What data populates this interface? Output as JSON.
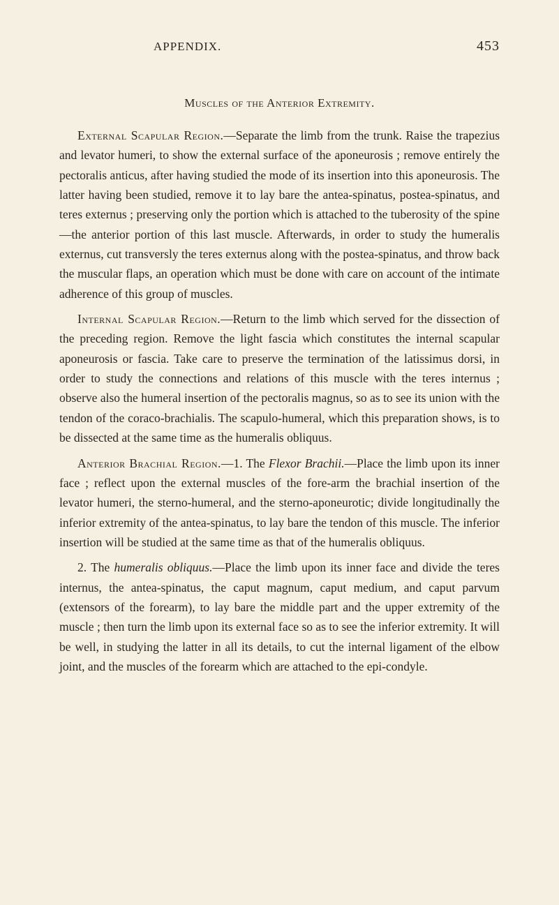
{
  "header": {
    "title": "APPENDIX.",
    "page_number": "453"
  },
  "section_title": "Muscles of the Anterior Extremity.",
  "paragraphs": {
    "p1": {
      "lead": "External Scapular Region.",
      "body": "—Separate the limb from the trunk. Raise the trapezius and levator humeri, to show the external surface of the aponeurosis ; remove entirely the pectoralis anticus, after having studied the mode of its insertion into this aponeurosis. The latter having been studied, remove it to lay bare the antea-spinatus, postea-spinatus, and teres externus ; preserving only the portion which is attached to the tuberosity of the spine—the anterior portion of this last muscle. Afterwards, in order to study the humeralis externus, cut transversly the teres externus along with the postea-spinatus, and throw back the muscular flaps, an operation which must be done with care on account of the intimate adherence of this group of muscles."
    },
    "p2": {
      "lead": "Internal Scapular Region.",
      "body": "—Return to the limb which served for the dissection of the preceding region. Remove the light fascia which constitutes the internal scapular aponeurosis or fascia. Take care to preserve the termination of the latissimus dorsi, in order to study the connections and relations of this muscle with the teres internus ; observe also the humeral insertion of the pectoralis magnus, so as to see its union with the tendon of the coraco-brachialis. The scapulo-humeral, which this preparation shows, is to be dissected at the same time as the humeralis obliquus."
    },
    "p3": {
      "lead": "Anterior Brachial Region.",
      "num": "—1. The ",
      "italic": "Flexor Brachii.",
      "body": "—Place the limb upon its inner face ; reflect upon the external muscles of the fore-arm the brachial insertion of the levator humeri, the sterno-humeral, and the sterno-aponeurotic; divide longitudinally the inferior extremity of the antea-spinatus, to lay bare the tendon of this muscle. The inferior insertion will be studied at the same time as that of the humeralis obliquus."
    },
    "p4": {
      "num": "2. The ",
      "italic": "humeralis obliquus.",
      "body": "—Place the limb upon its inner face and divide the teres internus, the antea-spinatus, the caput magnum, caput medium, and caput parvum (extensors of the forearm), to lay bare the middle part and the upper extremity of the muscle ; then turn the limb upon its external face so as to see the inferior extremity. It will be well, in studying the latter in all its details, to cut the internal ligament of the elbow joint, and the muscles of the forearm which are attached to the epi-condyle."
    }
  },
  "colors": {
    "background": "#f5f0e1",
    "text": "#2a2520"
  },
  "typography": {
    "body_font_size": 17.5,
    "line_height": 1.62,
    "header_font_size": 17,
    "page_number_font_size": 20
  }
}
